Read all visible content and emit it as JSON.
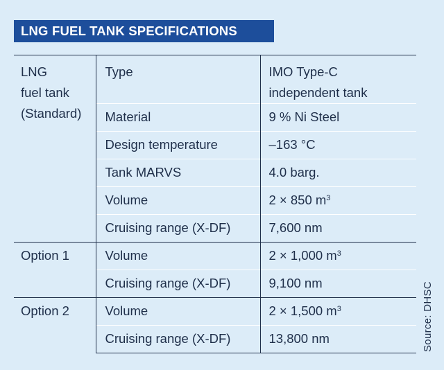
{
  "title": "LNG FUEL TANK SPECIFICATIONS",
  "source": "Source: DHSC",
  "groups": [
    {
      "label_lines": [
        "LNG",
        "fuel tank",
        "(Standard)"
      ],
      "rows": [
        {
          "param": "Type",
          "value_lines": [
            "IMO Type-C",
            "independent tank"
          ]
        },
        {
          "param": "Material",
          "value": "9 % Ni Steel"
        },
        {
          "param": "Design temperature",
          "value": "–163 °C"
        },
        {
          "param": "Tank MARVS",
          "value": "4.0 barg."
        },
        {
          "param": "Volume",
          "value": "2 × 850 m",
          "unit_sup": "3"
        },
        {
          "param": "Cruising range (X-DF)",
          "value": "7,600 nm"
        }
      ]
    },
    {
      "label": "Option 1",
      "rows": [
        {
          "param": "Volume",
          "value": "2 × 1,000 m",
          "unit_sup": "3"
        },
        {
          "param": "Cruising range (X-DF)",
          "value": "9,100 nm"
        }
      ]
    },
    {
      "label": "Option 2",
      "rows": [
        {
          "param": "Volume",
          "value": "2 × 1,500 m",
          "unit_sup": "3"
        },
        {
          "param": "Cruising range (X-DF)",
          "value": "13,800 nm"
        }
      ]
    }
  ]
}
